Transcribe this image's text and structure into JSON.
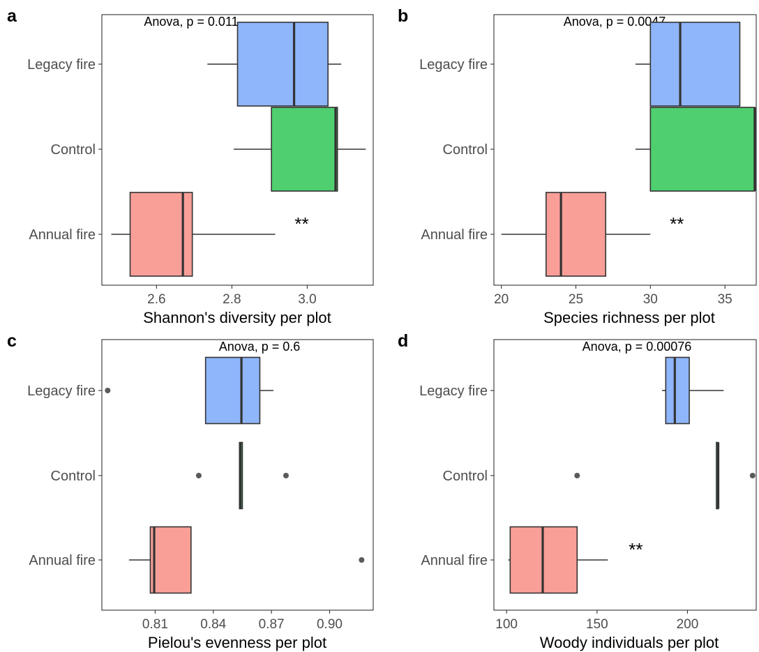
{
  "colors": {
    "legacy": "#8fb5fb",
    "control": "#4fcf6f",
    "annual": "#f99f98",
    "outline": "#333333",
    "outlier": "#5a5a5a",
    "axis_text": "#4d4d4d"
  },
  "chart_data": [
    {
      "type": "boxplot",
      "panel_label": "a",
      "annotation": "Anova, p = 0.011",
      "xlabel": "Shannon's diversity per plot",
      "ylabel": "",
      "categories": [
        "Legacy fire",
        "Control",
        "Annual fire"
      ],
      "xlim": [
        2.455,
        3.175
      ],
      "xticks": [
        2.6,
        2.8,
        3.0
      ],
      "xtick_labels": [
        "2.6",
        "2.8",
        "3.0"
      ],
      "boxes": [
        {
          "group": "Legacy fire",
          "whisker_low": 2.735,
          "q1": 2.815,
          "median": 2.965,
          "q3": 3.055,
          "whisker_high": 3.09,
          "outliers": []
        },
        {
          "group": "Control",
          "whisker_low": 2.805,
          "q1": 2.905,
          "median": 3.075,
          "q3": 3.08,
          "whisker_high": 3.155,
          "outliers": []
        },
        {
          "group": "Annual fire",
          "whisker_low": 2.48,
          "q1": 2.53,
          "median": 2.67,
          "q3": 2.695,
          "whisker_high": 2.915,
          "outliers": []
        }
      ],
      "significance": [
        {
          "group": "Annual fire",
          "label": "**"
        }
      ]
    },
    {
      "type": "boxplot",
      "panel_label": "b",
      "annotation": "Anova, p = 0.0047",
      "xlabel": "Species richness per plot",
      "ylabel": "",
      "categories": [
        "Legacy fire",
        "Control",
        "Annual fire"
      ],
      "xlim": [
        19.5,
        37.1
      ],
      "xticks": [
        20,
        25,
        30,
        35
      ],
      "xtick_labels": [
        "20",
        "25",
        "30",
        "35"
      ],
      "boxes": [
        {
          "group": "Legacy fire",
          "whisker_low": 29,
          "q1": 30,
          "median": 32,
          "q3": 36,
          "whisker_high": 36,
          "outliers": []
        },
        {
          "group": "Control",
          "whisker_low": 29,
          "q1": 30,
          "median": 37,
          "q3": 37,
          "whisker_high": 37,
          "outliers": []
        },
        {
          "group": "Annual fire",
          "whisker_low": 20,
          "q1": 23,
          "median": 24,
          "q3": 27,
          "whisker_high": 30,
          "outliers": []
        }
      ],
      "significance": [
        {
          "group": "Annual fire",
          "label": "**"
        }
      ]
    },
    {
      "type": "boxplot",
      "panel_label": "c",
      "annotation": "Anova, p = 0.6",
      "xlabel": "Pielou's evenness per plot",
      "ylabel": "",
      "categories": [
        "Legacy fire",
        "Control",
        "Annual fire"
      ],
      "xlim": [
        0.7825,
        0.9225
      ],
      "xticks": [
        0.81,
        0.84,
        0.87,
        0.9
      ],
      "xtick_labels": [
        "0.81",
        "0.84",
        "0.87",
        "0.90"
      ],
      "boxes": [
        {
          "group": "Legacy fire",
          "whisker_low": 0.836,
          "q1": 0.836,
          "median": 0.8545,
          "q3": 0.864,
          "whisker_high": 0.871,
          "outliers": [
            0.7855
          ]
        },
        {
          "group": "Control",
          "whisker_low": 0.8535,
          "q1": 0.8535,
          "median": 0.854,
          "q3": 0.855,
          "whisker_high": 0.855,
          "outliers": [
            0.8325,
            0.8775
          ]
        },
        {
          "group": "Annual fire",
          "whisker_low": 0.7965,
          "q1": 0.8075,
          "median": 0.8095,
          "q3": 0.8285,
          "whisker_high": 0.8285,
          "outliers": [
            0.9165
          ]
        }
      ],
      "significance": []
    },
    {
      "type": "boxplot",
      "panel_label": "d",
      "annotation": "Anova, p = 0.00076",
      "xlabel": "Woody individuals per plot",
      "ylabel": "",
      "categories": [
        "Legacy fire",
        "Control",
        "Annual fire"
      ],
      "xlim": [
        93,
        238
      ],
      "xticks": [
        100,
        150,
        200
      ],
      "xtick_labels": [
        "100",
        "150",
        "200"
      ],
      "boxes": [
        {
          "group": "Legacy fire",
          "whisker_low": 186,
          "q1": 188,
          "median": 193,
          "q3": 201,
          "whisker_high": 220,
          "outliers": []
        },
        {
          "group": "Control",
          "whisker_low": 216,
          "q1": 216,
          "median": 217,
          "q3": 217,
          "whisker_high": 217,
          "outliers": [
            139,
            236
          ]
        },
        {
          "group": "Annual fire",
          "whisker_low": 101,
          "q1": 102,
          "median": 120,
          "q3": 139,
          "whisker_high": 156,
          "outliers": []
        }
      ],
      "significance": [
        {
          "group": "Annual fire",
          "label": "**"
        }
      ]
    }
  ]
}
